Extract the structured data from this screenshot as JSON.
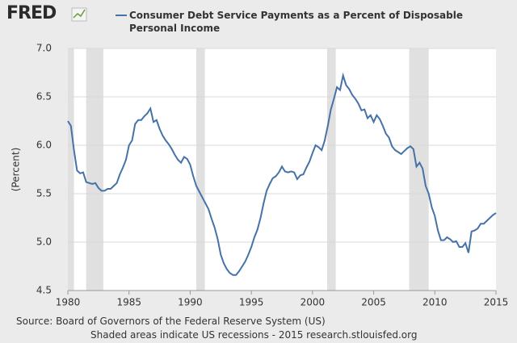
{
  "logo": "FRED",
  "chart_data": {
    "type": "line",
    "series": [
      {
        "name": "Consumer Debt Service Payments as a Percent of Disposable Personal Income",
        "color": "#4572a7",
        "values": [
          6.25,
          6.2,
          5.95,
          5.74,
          5.71,
          5.72,
          5.62,
          5.61,
          5.6,
          5.61,
          5.56,
          5.53,
          5.53,
          5.55,
          5.55,
          5.58,
          5.61,
          5.7,
          5.77,
          5.85,
          6.0,
          6.05,
          6.22,
          6.26,
          6.26,
          6.3,
          6.33,
          6.38,
          6.24,
          6.26,
          6.17,
          6.1,
          6.05,
          6.01,
          5.96,
          5.9,
          5.85,
          5.82,
          5.88,
          5.86,
          5.8,
          5.68,
          5.58,
          5.52,
          5.46,
          5.4,
          5.34,
          5.24,
          5.15,
          5.03,
          4.87,
          4.78,
          4.72,
          4.68,
          4.66,
          4.66,
          4.7,
          4.75,
          4.8,
          4.87,
          4.95,
          5.05,
          5.13,
          5.25,
          5.4,
          5.53,
          5.6,
          5.66,
          5.68,
          5.72,
          5.78,
          5.73,
          5.72,
          5.73,
          5.72,
          5.65,
          5.69,
          5.7,
          5.77,
          5.83,
          5.92,
          6.0,
          5.98,
          5.95,
          6.05,
          6.2,
          6.37,
          6.48,
          6.6,
          6.57,
          6.72,
          6.62,
          6.58,
          6.52,
          6.48,
          6.43,
          6.36,
          6.37,
          6.28,
          6.31,
          6.24,
          6.31,
          6.27,
          6.2,
          6.12,
          6.08,
          5.99,
          5.95,
          5.93,
          5.91,
          5.94,
          5.97,
          5.99,
          5.96,
          5.78,
          5.82,
          5.76,
          5.58,
          5.5,
          5.36,
          5.27,
          5.12,
          5.02,
          5.02,
          5.05,
          5.03,
          5.0,
          5.01,
          4.95,
          4.95,
          4.99,
          4.89,
          5.11,
          5.12,
          5.14,
          5.19,
          5.19,
          5.22,
          5.25,
          5.28,
          5.3
        ]
      }
    ],
    "x": [
      1980,
      1980.25,
      1980.5,
      1980.75,
      1981,
      1981.25,
      1981.5,
      1981.75,
      1982,
      1982.25,
      1982.5,
      1982.75,
      1983,
      1983.25,
      1983.5,
      1983.75,
      1984,
      1984.25,
      1984.5,
      1984.75,
      1985,
      1985.25,
      1985.5,
      1985.75,
      1986,
      1986.25,
      1986.5,
      1986.75,
      1987,
      1987.25,
      1987.5,
      1987.75,
      1988,
      1988.25,
      1988.5,
      1988.75,
      1989,
      1989.25,
      1989.5,
      1989.75,
      1990,
      1990.25,
      1990.5,
      1990.75,
      1991,
      1991.25,
      1991.5,
      1991.75,
      1992,
      1992.25,
      1992.5,
      1992.75,
      1993,
      1993.25,
      1993.5,
      1993.75,
      1994,
      1994.25,
      1994.5,
      1994.75,
      1995,
      1995.25,
      1995.5,
      1995.75,
      1996,
      1996.25,
      1996.5,
      1996.75,
      1997,
      1997.25,
      1997.5,
      1997.75,
      1998,
      1998.25,
      1998.5,
      1998.75,
      1999,
      1999.25,
      1999.5,
      1999.75,
      2000,
      2000.25,
      2000.5,
      2000.75,
      2001,
      2001.25,
      2001.5,
      2001.75,
      2002,
      2002.25,
      2002.5,
      2002.75,
      2003,
      2003.25,
      2003.5,
      2003.75,
      2004,
      2004.25,
      2004.5,
      2004.75,
      2005,
      2005.25,
      2005.5,
      2005.75,
      2006,
      2006.25,
      2006.5,
      2006.75,
      2007,
      2007.25,
      2007.5,
      2007.75,
      2008,
      2008.25,
      2008.5,
      2008.75,
      2009,
      2009.25,
      2009.5,
      2009.75,
      2010,
      2010.25,
      2010.5,
      2010.75,
      2011,
      2011.25,
      2011.5,
      2011.75,
      2012,
      2012.25,
      2012.5,
      2012.75,
      2013,
      2013.25,
      2013.5,
      2013.75,
      2014,
      2014.25,
      2014.5,
      2014.75,
      2015
    ],
    "recessions": [
      [
        1980.0,
        1980.5
      ],
      [
        1981.5,
        1982.9
      ],
      [
        1990.5,
        1991.2
      ],
      [
        2001.2,
        2001.9
      ],
      [
        2007.9,
        2009.5
      ]
    ],
    "recession_color": "#e0e0e0",
    "xlim": [
      1980,
      2015
    ],
    "xticks": [
      1980,
      1985,
      1990,
      1995,
      2000,
      2005,
      2010,
      2015
    ],
    "ylim": [
      4.5,
      7.0
    ],
    "yticks": [
      4.5,
      {
        "value": 5,
        "label": "5.0"
      },
      5.5,
      {
        "value": 6,
        "label": "6.0"
      },
      6.5,
      {
        "value": 7,
        "label": "7.0"
      }
    ],
    "ylabel": "(Percent)",
    "grid": true,
    "source": "Source: Board of Governors of the Federal Reserve System (US)",
    "note": "Shaded areas indicate US recessions - 2015 research.stlouisfed.org"
  }
}
